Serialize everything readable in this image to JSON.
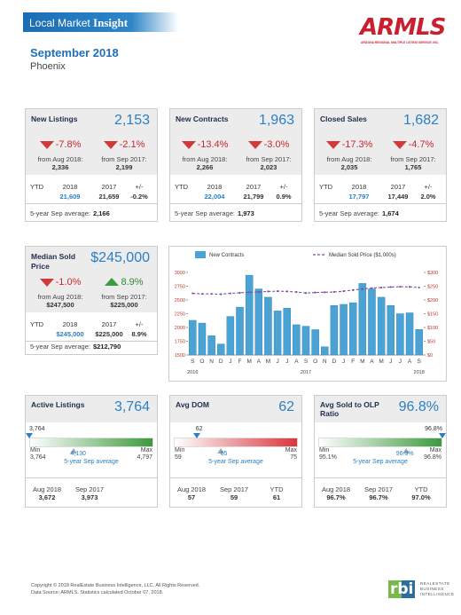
{
  "header": {
    "brand": "Local Market",
    "brand_emphasis": "Insight",
    "logo": "ARMLS",
    "logo_caption": "ARIZONA REGIONAL MULTIPLE LISTING SERVICE, INC."
  },
  "report": {
    "period": "September 2018",
    "area": "Phoenix"
  },
  "stat_cards": [
    {
      "title": "New Listings",
      "value": "2,153",
      "changes": [
        {
          "change": "-7.8%",
          "label": "from Aug 2018:",
          "value": "2,336"
        },
        {
          "change": "-2.1%",
          "label": "from Sep 2017:",
          "value": "2,199"
        }
      ],
      "ytd": {
        "headers": [
          "YTD",
          "2018",
          "2017",
          "+/-"
        ],
        "values": [
          "21,609",
          "21,659",
          "-0.2%"
        ]
      },
      "average": {
        "label": "5-year Sep average:",
        "value": "2,166"
      }
    },
    {
      "title": "New Contracts",
      "value": "1,963",
      "changes": [
        {
          "change": "-13.4%",
          "label": "from Aug 2018:",
          "value": "2,266"
        },
        {
          "change": "-3.0%",
          "label": "from Sep 2017:",
          "value": "2,023"
        }
      ],
      "ytd": {
        "headers": [
          "YTD",
          "2018",
          "2017",
          "+/-"
        ],
        "values": [
          "22,004",
          "21,799",
          "0.9%"
        ]
      },
      "average": {
        "label": "5-year Sep average:",
        "value": "1,973"
      }
    },
    {
      "title": "Closed Sales",
      "value": "1,682",
      "changes": [
        {
          "change": "-17.3%",
          "label": "from Aug 2018:",
          "value": "2,035"
        },
        {
          "change": "-4.7%",
          "label": "from Sep 2017:",
          "value": "1,765"
        }
      ],
      "ytd": {
        "headers": [
          "YTD",
          "2018",
          "2017",
          "+/-"
        ],
        "values": [
          "17,797",
          "17,449",
          "2.0%"
        ]
      },
      "average": {
        "label": "5-year Sep average:",
        "value": "1,674"
      }
    },
    {
      "title": "Median Sold Price",
      "value": "$245,000",
      "changes": [
        {
          "change": "-1.0%",
          "label": "from Aug 2018:",
          "value": "$247,500"
        },
        {
          "change": "8.9%",
          "label": "from Sep 2017:",
          "value": "$225,000"
        }
      ],
      "ytd": {
        "headers": [
          "YTD",
          "2018",
          "2017",
          "+/-"
        ],
        "values": [
          "$245,000",
          "$225,000",
          "8.9%"
        ]
      },
      "average": {
        "label": "5-year Sep average:",
        "value": "$212,790"
      }
    }
  ],
  "chart_data": {
    "type": "bar",
    "legend": "top",
    "categories": [
      "S",
      "O",
      "N",
      "D",
      "J",
      "F",
      "M",
      "A",
      "M",
      "J",
      "J",
      "A",
      "S",
      "O",
      "N",
      "D",
      "J",
      "F",
      "M",
      "A",
      "M",
      "J",
      "J",
      "A",
      "S"
    ],
    "year_labels": [
      "2016",
      "2017",
      "2018"
    ],
    "series": [
      {
        "name": "New Contracts",
        "type": "bar",
        "color": "#4aa3d4",
        "values": [
          2130,
          2080,
          1850,
          1700,
          2200,
          2370,
          2950,
          2700,
          2550,
          2300,
          2350,
          2050,
          2023,
          1960,
          1650,
          2400,
          2420,
          2450,
          2800,
          2700,
          2550,
          2400,
          2250,
          2266,
          1963
        ]
      },
      {
        "name": "Median Sold Price ($1,000s)",
        "type": "line",
        "color": "#7b4fa0",
        "dash": true,
        "axis": "y2",
        "values": [
          224,
          222,
          222,
          221,
          224,
          226,
          228,
          229,
          231,
          232,
          231,
          229,
          225,
          227,
          228,
          229,
          232,
          236,
          240,
          243,
          245,
          247,
          248,
          247.5,
          245
        ]
      }
    ],
    "ylim": [
      1500,
      3000
    ],
    "yticks": [
      1500,
      1750,
      2000,
      2250,
      2500,
      2750,
      3000
    ],
    "y2lim": [
      0,
      300
    ],
    "y2ticks": [
      {
        "value": 0,
        "label": "$0"
      },
      {
        "value": 50,
        "label": "$50"
      },
      {
        "value": 100,
        "label": "$100"
      },
      {
        "value": 150,
        "label": "$150"
      },
      {
        "value": 200,
        "label": "$200"
      },
      {
        "value": 250,
        "label": "$250"
      },
      {
        "value": 300,
        "label": "$300"
      }
    ],
    "grid": false
  },
  "gauge_cards": [
    {
      "title": "Active Listings",
      "value": "3,764",
      "color": "#3c9a3c",
      "current": "3,764",
      "min_label": "Min",
      "min": "3,764",
      "max_label": "Max",
      "max": "4,797",
      "average": "4,130",
      "average_label": "5-year Sep average",
      "history": [
        {
          "label": "Aug 2018",
          "value": "3,672"
        },
        {
          "label": "Sep 2017",
          "value": "3,973"
        }
      ]
    },
    {
      "title": "Avg DOM",
      "value": "62",
      "color": "#d9363e",
      "current": "62",
      "min_label": "Min",
      "min": "59",
      "max_label": "Max",
      "max": "75",
      "average": "65",
      "average_label": "5-year Sep average",
      "history": [
        {
          "label": "Aug 2018",
          "value": "57"
        },
        {
          "label": "Sep 2017",
          "value": "59"
        },
        {
          "label": "YTD",
          "value": "61"
        }
      ]
    },
    {
      "title": "Avg Sold to OLP Ratio",
      "value": "96.8%",
      "color": "#3c9a3c",
      "current": "96.8%",
      "min_label": "Min",
      "min": "95.1%",
      "max_label": "Max",
      "max": "96.8%",
      "average": "96.3%",
      "average_label": "5-year Sep average",
      "history": [
        {
          "label": "Aug 2018",
          "value": "96.7%"
        },
        {
          "label": "Sep 2017",
          "value": "96.7%"
        },
        {
          "label": "YTD",
          "value": "97.0%"
        }
      ]
    }
  ],
  "footer": {
    "copyright": "Copyright © 2018 RealEstate Business Intelligence, LLC. All Rights Reserved.",
    "source": "Data Source: ARMLS. Statistics calculated October 07, 2018.",
    "logo": "rbi",
    "logo_lines": [
      "REALESTATE",
      "BUSINESS",
      "INTELLIGENCE"
    ]
  }
}
